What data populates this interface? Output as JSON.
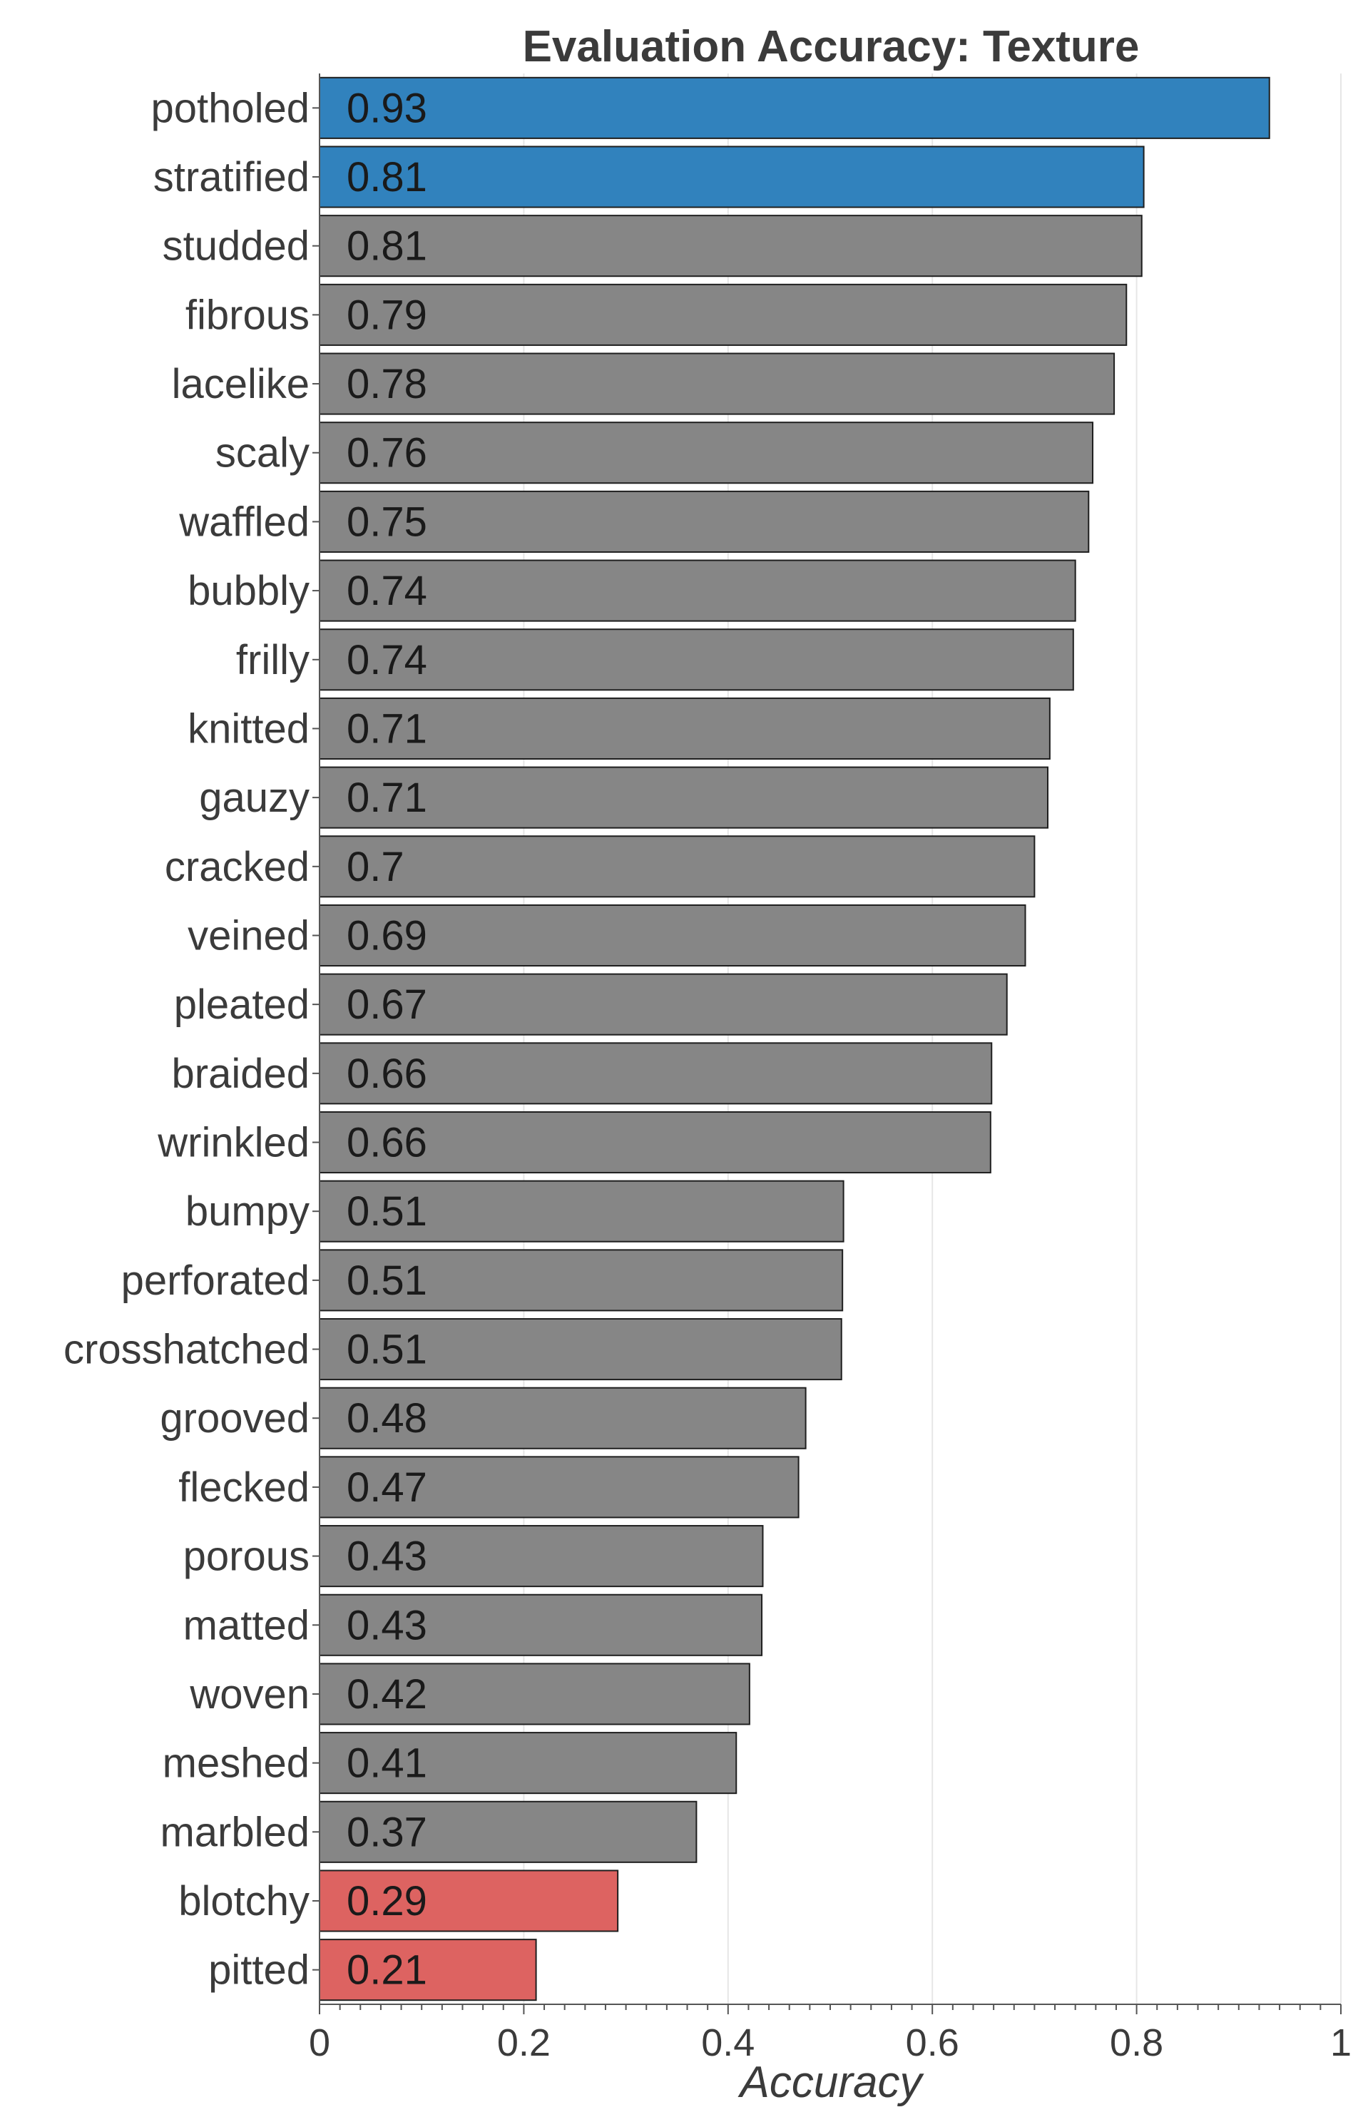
{
  "chart_data": {
    "type": "bar",
    "orientation": "horizontal",
    "title": "Evaluation Accuracy: Texture",
    "xlabel": "Accuracy",
    "ylabel": "",
    "xlim": [
      0,
      1
    ],
    "x_ticks": [
      0,
      0.2,
      0.4,
      0.6,
      0.8,
      1
    ],
    "x_tick_labels": [
      "0",
      "0.2",
      "0.4",
      "0.6",
      "0.8",
      "1"
    ],
    "grid": true,
    "legend": false,
    "colors": {
      "top": "#3182bd",
      "middle": "#868686",
      "bottom": "#dd6361",
      "bar_edge": "#1f1f1f"
    },
    "bars": [
      {
        "category": "potholed",
        "value": 0.93,
        "label": "0.93",
        "group": "top"
      },
      {
        "category": "stratified",
        "value": 0.807,
        "label": "0.81",
        "group": "top"
      },
      {
        "category": "studded",
        "value": 0.805,
        "label": "0.81",
        "group": "middle"
      },
      {
        "category": "fibrous",
        "value": 0.79,
        "label": "0.79",
        "group": "middle"
      },
      {
        "category": "lacelike",
        "value": 0.778,
        "label": "0.78",
        "group": "middle"
      },
      {
        "category": "scaly",
        "value": 0.757,
        "label": "0.76",
        "group": "middle"
      },
      {
        "category": "waffled",
        "value": 0.753,
        "label": "0.75",
        "group": "middle"
      },
      {
        "category": "bubbly",
        "value": 0.74,
        "label": "0.74",
        "group": "middle"
      },
      {
        "category": "frilly",
        "value": 0.738,
        "label": "0.74",
        "group": "middle"
      },
      {
        "category": "knitted",
        "value": 0.715,
        "label": "0.71",
        "group": "middle"
      },
      {
        "category": "gauzy",
        "value": 0.713,
        "label": "0.71",
        "group": "middle"
      },
      {
        "category": "cracked",
        "value": 0.7,
        "label": "0.7",
        "group": "middle"
      },
      {
        "category": "veined",
        "value": 0.691,
        "label": "0.69",
        "group": "middle"
      },
      {
        "category": "pleated",
        "value": 0.673,
        "label": "0.67",
        "group": "middle"
      },
      {
        "category": "braided",
        "value": 0.658,
        "label": "0.66",
        "group": "middle"
      },
      {
        "category": "wrinkled",
        "value": 0.657,
        "label": "0.66",
        "group": "middle"
      },
      {
        "category": "bumpy",
        "value": 0.513,
        "label": "0.51",
        "group": "middle"
      },
      {
        "category": "perforated",
        "value": 0.512,
        "label": "0.51",
        "group": "middle"
      },
      {
        "category": "crosshatched",
        "value": 0.511,
        "label": "0.51",
        "group": "middle"
      },
      {
        "category": "grooved",
        "value": 0.476,
        "label": "0.48",
        "group": "middle"
      },
      {
        "category": "flecked",
        "value": 0.469,
        "label": "0.47",
        "group": "middle"
      },
      {
        "category": "porous",
        "value": 0.434,
        "label": "0.43",
        "group": "middle"
      },
      {
        "category": "matted",
        "value": 0.433,
        "label": "0.43",
        "group": "middle"
      },
      {
        "category": "woven",
        "value": 0.421,
        "label": "0.42",
        "group": "middle"
      },
      {
        "category": "meshed",
        "value": 0.408,
        "label": "0.41",
        "group": "middle"
      },
      {
        "category": "marbled",
        "value": 0.369,
        "label": "0.37",
        "group": "middle"
      },
      {
        "category": "blotchy",
        "value": 0.292,
        "label": "0.29",
        "group": "bottom"
      },
      {
        "category": "pitted",
        "value": 0.212,
        "label": "0.21",
        "group": "bottom"
      }
    ]
  }
}
